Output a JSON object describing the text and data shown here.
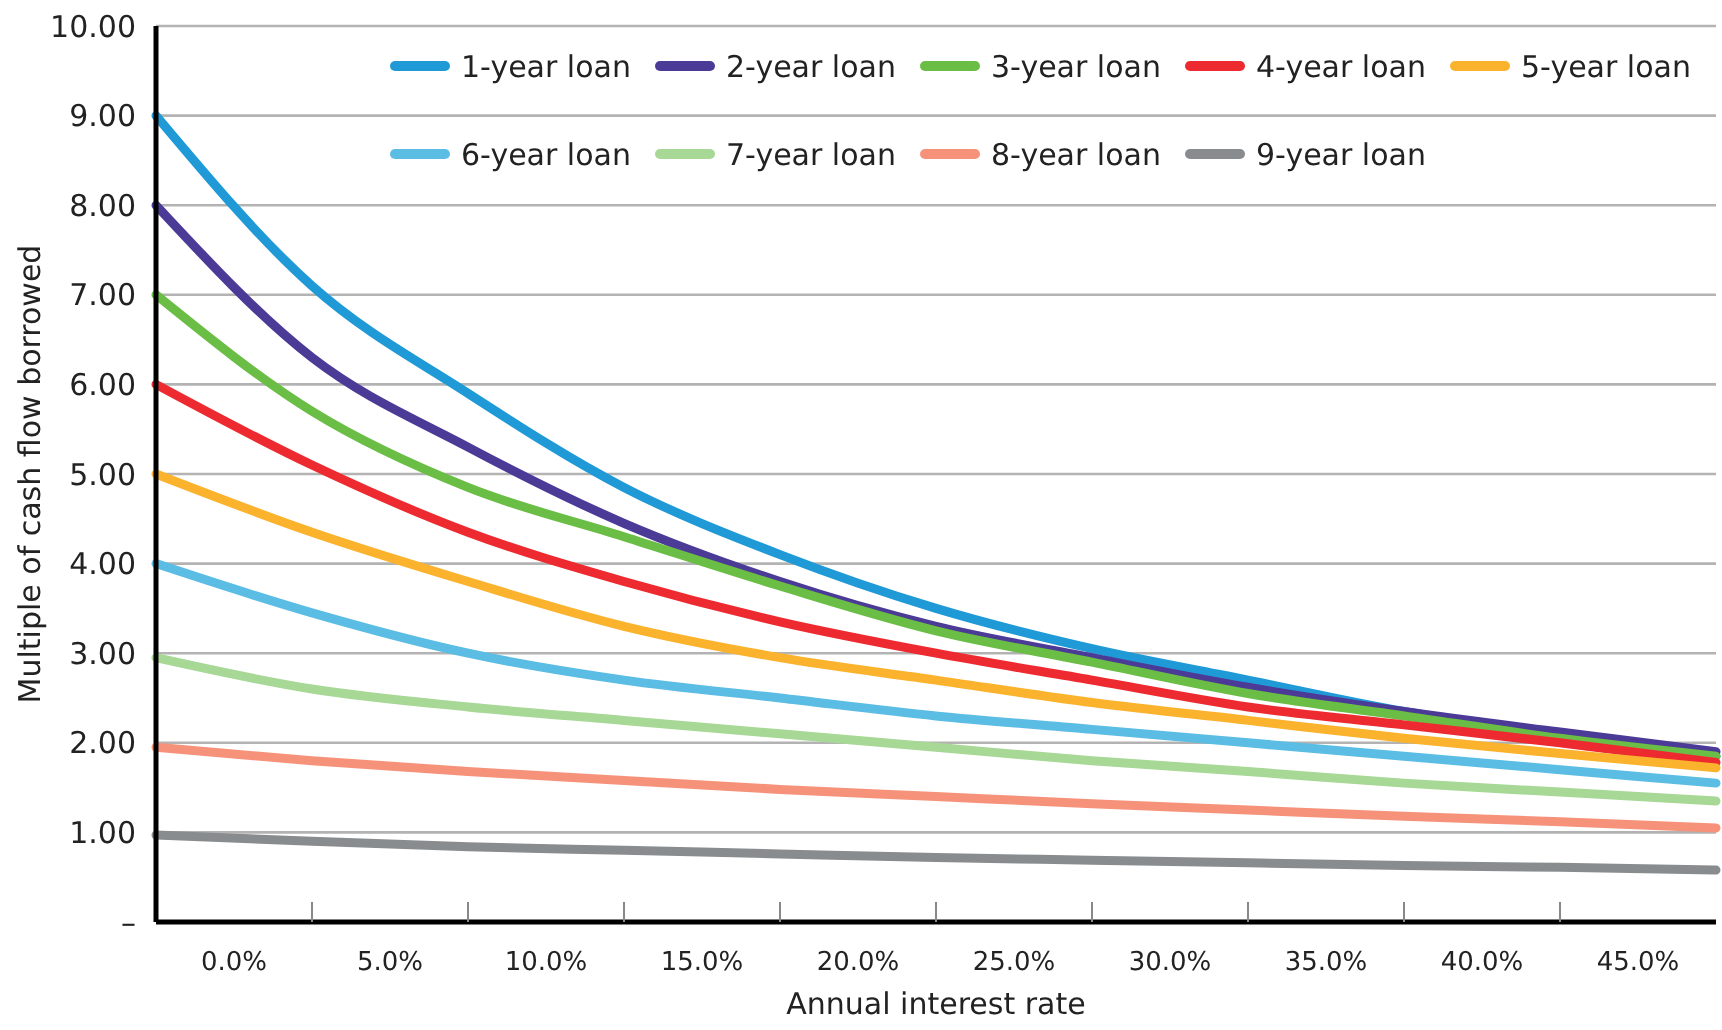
{
  "chart_data": {
    "type": "line",
    "xlabel": "Annual interest rate",
    "ylabel": "Multiple of cash flow borrowed",
    "x": [
      -2.5,
      2.5,
      7.5,
      12.5,
      17.5,
      22.5,
      27.5,
      32.5,
      37.5,
      42.5,
      47.5
    ],
    "xlim": [
      -2.5,
      47.5
    ],
    "xticks": [
      {
        "value": 0,
        "label": "0.0%"
      },
      {
        "value": 5,
        "label": "5.0%"
      },
      {
        "value": 10,
        "label": "10.0%"
      },
      {
        "value": 15,
        "label": "15.0%"
      },
      {
        "value": 20,
        "label": "20.0%"
      },
      {
        "value": 25,
        "label": "25.0%"
      },
      {
        "value": 30,
        "label": "30.0%"
      },
      {
        "value": 35,
        "label": "35.0%"
      },
      {
        "value": 40,
        "label": "40.0%"
      },
      {
        "value": 45,
        "label": "45.0%"
      },
      {
        "value": 2.5,
        "label": null
      },
      {
        "value": 7.5,
        "label": null
      },
      {
        "value": 12.5,
        "label": null
      },
      {
        "value": 17.5,
        "label": null
      },
      {
        "value": 22.5,
        "label": null
      },
      {
        "value": 27.5,
        "label": null
      },
      {
        "value": 32.5,
        "label": null
      },
      {
        "value": 37.5,
        "label": null
      },
      {
        "value": 42.5,
        "label": null
      }
    ],
    "ylim": [
      0,
      10
    ],
    "yticks": [
      {
        "value": 0,
        "label": "–"
      },
      {
        "value": 1,
        "label": "1.00"
      },
      {
        "value": 2,
        "label": "2.00"
      },
      {
        "value": 3,
        "label": "3.00"
      },
      {
        "value": 4,
        "label": "4.00"
      },
      {
        "value": 5,
        "label": "5.00"
      },
      {
        "value": 6,
        "label": "6.00"
      },
      {
        "value": 7,
        "label": "7.00"
      },
      {
        "value": 8,
        "label": "8.00"
      },
      {
        "value": 9,
        "label": "9.00"
      },
      {
        "value": 10,
        "label": "10.00"
      }
    ],
    "grid": "y",
    "legend": "top right",
    "marker": "none",
    "line_style": "solid",
    "series": [
      {
        "name": "1-year loan",
        "color": "#1f9ad6",
        "values": [
          9.0,
          7.1,
          5.9,
          4.85,
          4.1,
          3.5,
          3.05,
          2.7,
          2.35,
          2.1,
          1.85
        ]
      },
      {
        "name": "2-year loan",
        "color": "#4b3a96",
        "values": [
          8.0,
          6.3,
          5.3,
          4.45,
          3.8,
          3.3,
          2.95,
          2.62,
          2.35,
          2.12,
          1.9
        ]
      },
      {
        "name": "3-year loan",
        "color": "#6abd45",
        "values": [
          7.0,
          5.7,
          4.85,
          4.3,
          3.75,
          3.25,
          2.9,
          2.55,
          2.3,
          2.05,
          1.85
        ]
      },
      {
        "name": "4-year loan",
        "color": "#ee2a31",
        "values": [
          6.0,
          5.1,
          4.35,
          3.8,
          3.35,
          3.0,
          2.7,
          2.4,
          2.2,
          2.0,
          1.78
        ]
      },
      {
        "name": "5-year loan",
        "color": "#fbb32e",
        "values": [
          5.0,
          4.35,
          3.8,
          3.3,
          2.95,
          2.7,
          2.45,
          2.25,
          2.05,
          1.88,
          1.72
        ]
      },
      {
        "name": "6-year loan",
        "color": "#5bbce4",
        "values": [
          4.0,
          3.45,
          3.0,
          2.7,
          2.5,
          2.3,
          2.15,
          2.0,
          1.85,
          1.7,
          1.55
        ]
      },
      {
        "name": "7-year loan",
        "color": "#a7d895",
        "values": [
          2.95,
          2.6,
          2.4,
          2.25,
          2.1,
          1.95,
          1.8,
          1.68,
          1.55,
          1.45,
          1.35
        ]
      },
      {
        "name": "8-year loan",
        "color": "#f7927a",
        "values": [
          1.95,
          1.8,
          1.68,
          1.58,
          1.48,
          1.4,
          1.32,
          1.25,
          1.18,
          1.12,
          1.05
        ]
      },
      {
        "name": "9-year loan",
        "color": "#898c8e",
        "values": [
          0.97,
          0.9,
          0.84,
          0.8,
          0.76,
          0.72,
          0.69,
          0.66,
          0.63,
          0.61,
          0.58
        ]
      }
    ]
  }
}
